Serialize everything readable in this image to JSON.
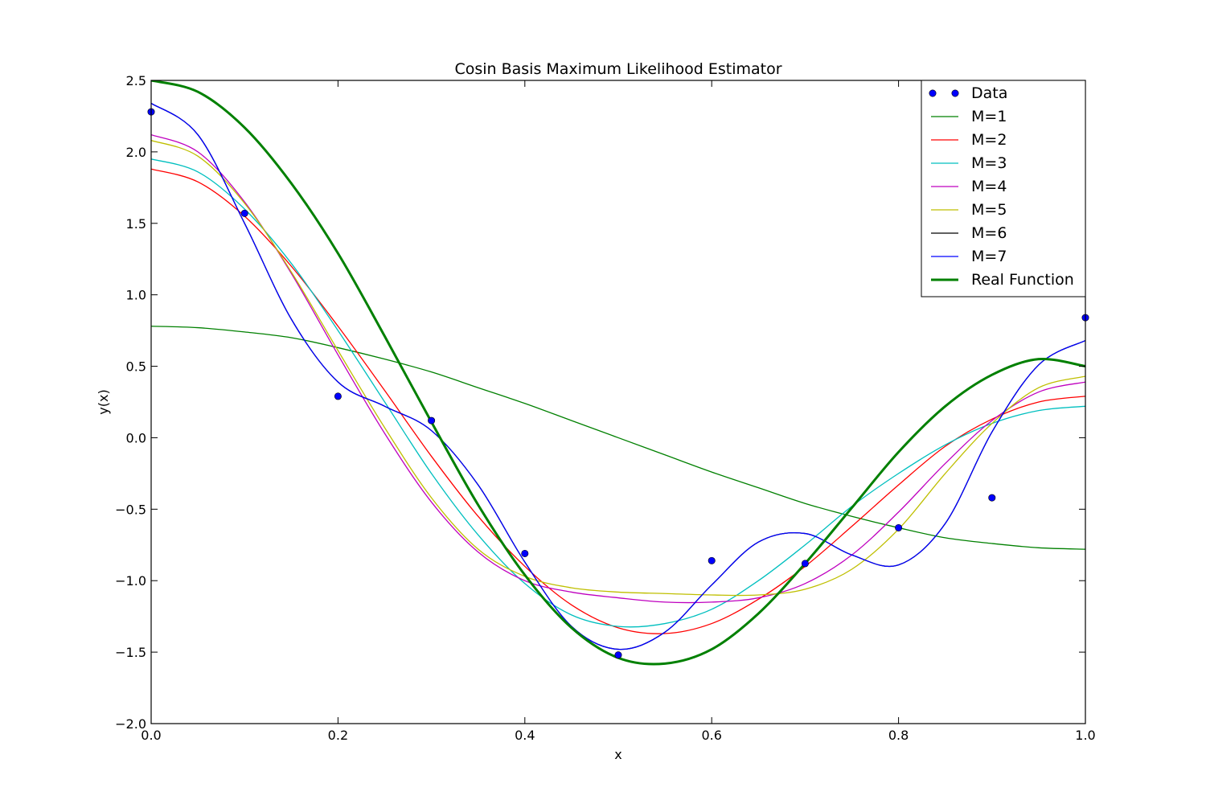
{
  "chart_data": {
    "type": "line",
    "title": "Cosin Basis Maximum Likelihood Estimator",
    "xlabel": "x",
    "ylabel": "y(x)",
    "xlim": [
      0.0,
      1.0
    ],
    "ylim": [
      -2.0,
      2.5
    ],
    "xticks": [
      0.0,
      0.2,
      0.4,
      0.6,
      0.8,
      1.0
    ],
    "xtick_labels": [
      "0.0",
      "0.2",
      "0.4",
      "0.6",
      "0.8",
      "1.0"
    ],
    "yticks": [
      2.5,
      2.0,
      1.5,
      1.0,
      0.5,
      0.0,
      -0.5,
      -1.0,
      -1.5,
      -2.0
    ],
    "ytick_labels": [
      "2.5",
      "2.0",
      "1.5",
      "1.0",
      "0.5",
      "0.0",
      "−0.5",
      "−1.0",
      "−1.5",
      "−2.0"
    ],
    "grid": false,
    "legend_position": "top-right",
    "legend": [
      "Data",
      "M=1",
      "M=2",
      "M=3",
      "M=4",
      "M=5",
      "M=6",
      "M=7",
      "Real Function"
    ],
    "scatter": {
      "name": "Data",
      "color": "#0000ff",
      "x": [
        0.0,
        0.1,
        0.2,
        0.3,
        0.4,
        0.5,
        0.6,
        0.7,
        0.8,
        0.9,
        1.0
      ],
      "y": [
        2.28,
        1.57,
        0.29,
        0.12,
        -0.81,
        -1.52,
        -0.86,
        -0.88,
        -0.63,
        -0.42,
        0.84
      ]
    },
    "series": [
      {
        "name": "M=1",
        "color": "#008000",
        "x": [
          0.0,
          0.05,
          0.1,
          0.15,
          0.2,
          0.25,
          0.3,
          0.35,
          0.4,
          0.45,
          0.5,
          0.55,
          0.6,
          0.65,
          0.7,
          0.75,
          0.8,
          0.85,
          0.9,
          0.95,
          1.0
        ],
        "y": [
          0.78,
          0.77,
          0.74,
          0.7,
          0.63,
          0.55,
          0.46,
          0.35,
          0.24,
          0.12,
          0.0,
          -0.12,
          -0.24,
          -0.35,
          -0.46,
          -0.55,
          -0.63,
          -0.7,
          -0.74,
          -0.77,
          -0.78
        ]
      },
      {
        "name": "M=2",
        "color": "#ff0000",
        "x": [
          0.0,
          0.05,
          0.1,
          0.15,
          0.2,
          0.25,
          0.3,
          0.35,
          0.4,
          0.45,
          0.5,
          0.55,
          0.6,
          0.65,
          0.7,
          0.75,
          0.8,
          0.85,
          0.9,
          0.95,
          1.0
        ],
        "y": [
          1.88,
          1.79,
          1.55,
          1.2,
          0.78,
          0.33,
          -0.13,
          -0.55,
          -0.9,
          -1.17,
          -1.33,
          -1.37,
          -1.3,
          -1.13,
          -0.9,
          -0.62,
          -0.33,
          -0.06,
          0.13,
          0.25,
          0.29
        ]
      },
      {
        "name": "M=3",
        "color": "#00bfbf",
        "x": [
          0.0,
          0.05,
          0.1,
          0.15,
          0.2,
          0.25,
          0.3,
          0.35,
          0.4,
          0.45,
          0.5,
          0.55,
          0.6,
          0.65,
          0.7,
          0.75,
          0.8,
          0.85,
          0.9,
          0.95,
          1.0
        ],
        "y": [
          1.95,
          1.86,
          1.6,
          1.22,
          0.75,
          0.25,
          -0.25,
          -0.68,
          -1.02,
          -1.24,
          -1.32,
          -1.3,
          -1.2,
          -1.0,
          -0.75,
          -0.48,
          -0.25,
          -0.05,
          0.1,
          0.19,
          0.22
        ]
      },
      {
        "name": "M=4",
        "color": "#bf00bf",
        "x": [
          0.0,
          0.05,
          0.1,
          0.15,
          0.2,
          0.25,
          0.3,
          0.35,
          0.4,
          0.45,
          0.5,
          0.55,
          0.6,
          0.65,
          0.7,
          0.75,
          0.8,
          0.85,
          0.9,
          0.95,
          1.0
        ],
        "y": [
          2.12,
          2.0,
          1.65,
          1.15,
          0.58,
          0.03,
          -0.45,
          -0.8,
          -1.0,
          -1.08,
          -1.12,
          -1.15,
          -1.15,
          -1.12,
          -1.02,
          -0.82,
          -0.52,
          -0.18,
          0.12,
          0.32,
          0.39
        ]
      },
      {
        "name": "M=5",
        "color": "#bfbf00",
        "x": [
          0.0,
          0.05,
          0.1,
          0.15,
          0.2,
          0.25,
          0.3,
          0.35,
          0.4,
          0.45,
          0.5,
          0.55,
          0.6,
          0.65,
          0.7,
          0.75,
          0.8,
          0.85,
          0.9,
          0.95,
          1.0
        ],
        "y": [
          2.08,
          1.97,
          1.64,
          1.16,
          0.61,
          0.07,
          -0.42,
          -0.78,
          -0.97,
          -1.05,
          -1.08,
          -1.09,
          -1.1,
          -1.1,
          -1.06,
          -0.92,
          -0.64,
          -0.25,
          0.1,
          0.35,
          0.43
        ]
      },
      {
        "name": "M=6",
        "color": "#000000",
        "x": [
          0.0,
          0.05,
          0.1,
          0.15,
          0.2,
          0.25,
          0.3,
          0.35,
          0.4,
          0.45,
          0.5,
          0.55,
          0.6,
          0.65,
          0.7,
          0.75,
          0.8,
          0.85,
          0.9,
          0.95,
          1.0
        ],
        "y": [
          2.34,
          2.12,
          1.5,
          0.83,
          0.39,
          0.22,
          0.05,
          -0.33,
          -0.87,
          -1.32,
          -1.48,
          -1.36,
          -1.03,
          -0.73,
          -0.67,
          -0.82,
          -0.89,
          -0.6,
          0.04,
          0.51,
          0.68
        ]
      },
      {
        "name": "M=7",
        "color": "#0000ff",
        "x": [
          0.0,
          0.05,
          0.1,
          0.15,
          0.2,
          0.25,
          0.3,
          0.35,
          0.4,
          0.45,
          0.5,
          0.55,
          0.6,
          0.65,
          0.7,
          0.75,
          0.8,
          0.85,
          0.9,
          0.95,
          1.0
        ],
        "y": [
          2.34,
          2.12,
          1.5,
          0.83,
          0.39,
          0.22,
          0.05,
          -0.33,
          -0.87,
          -1.32,
          -1.48,
          -1.36,
          -1.03,
          -0.73,
          -0.67,
          -0.82,
          -0.89,
          -0.6,
          0.04,
          0.51,
          0.68
        ]
      },
      {
        "name": "Real Function",
        "color": "#008000",
        "thick": true,
        "x": [
          0.0,
          0.05,
          0.1,
          0.15,
          0.2,
          0.25,
          0.3,
          0.35,
          0.4,
          0.45,
          0.5,
          0.55,
          0.6,
          0.65,
          0.7,
          0.75,
          0.8,
          0.85,
          0.9,
          0.95,
          1.0
        ],
        "y": [
          2.5,
          2.42,
          2.17,
          1.78,
          1.29,
          0.71,
          0.11,
          -0.47,
          -0.96,
          -1.33,
          -1.54,
          -1.58,
          -1.48,
          -1.23,
          -0.88,
          -0.49,
          -0.1,
          0.22,
          0.44,
          0.55,
          0.5
        ]
      }
    ]
  }
}
